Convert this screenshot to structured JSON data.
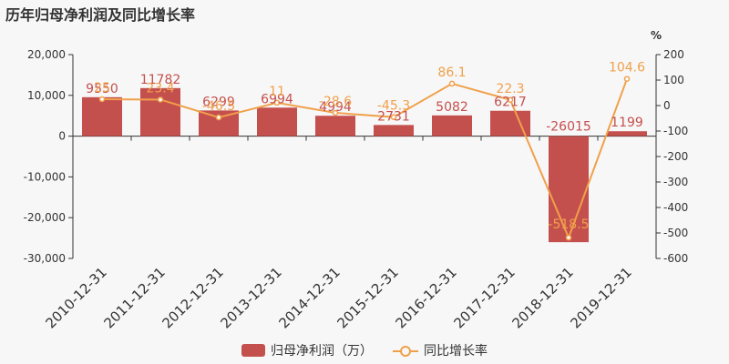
{
  "chart_data": {
    "type": "bar",
    "title": "历年归母净利润及同比增长率",
    "categories": [
      "2010-12-31",
      "2011-12-31",
      "2012-12-31",
      "2013-12-31",
      "2014-12-31",
      "2015-12-31",
      "2016-12-31",
      "2017-12-31",
      "2018-12-31",
      "2019-12-31"
    ],
    "series": [
      {
        "name": "归母净利润（万）",
        "type": "bar",
        "axis": "left",
        "values": [
          9550,
          11782,
          6299,
          6994,
          4994,
          2731,
          5082,
          6217,
          -26015,
          1199
        ],
        "labels": [
          "9550",
          "11782",
          "6299",
          "6994",
          "4994",
          "2731",
          "5082",
          "6217",
          "-26015",
          "1199"
        ]
      },
      {
        "name": "同比增长率",
        "type": "line",
        "axis": "right",
        "values": [
          25,
          23.4,
          -46.5,
          11,
          -28.6,
          -45.3,
          86.1,
          22.3,
          -518.5,
          104.6
        ],
        "labels": [
          "25",
          "23.4",
          "-46.5",
          "11",
          "-28.6",
          "-45.3",
          "86.1",
          "22.3",
          "-518.5",
          "104.6"
        ]
      }
    ],
    "y_left": {
      "min": -30000,
      "max": 20000,
      "ticks": [
        "20,000",
        "10,000",
        "0",
        "-10,000",
        "-20,000",
        "-30,000"
      ]
    },
    "y_right": {
      "min": -600,
      "max": 200,
      "unit": "%",
      "ticks": [
        "200",
        "100",
        "0",
        "-100",
        "-200",
        "-300",
        "-400",
        "-500",
        "-600"
      ]
    },
    "grid": false,
    "legend_position": "bottom",
    "colors": {
      "bar": "#c4504e",
      "line": "#f0a04b",
      "bar_label": "#c4504e",
      "line_label": "#f0a04b"
    }
  }
}
